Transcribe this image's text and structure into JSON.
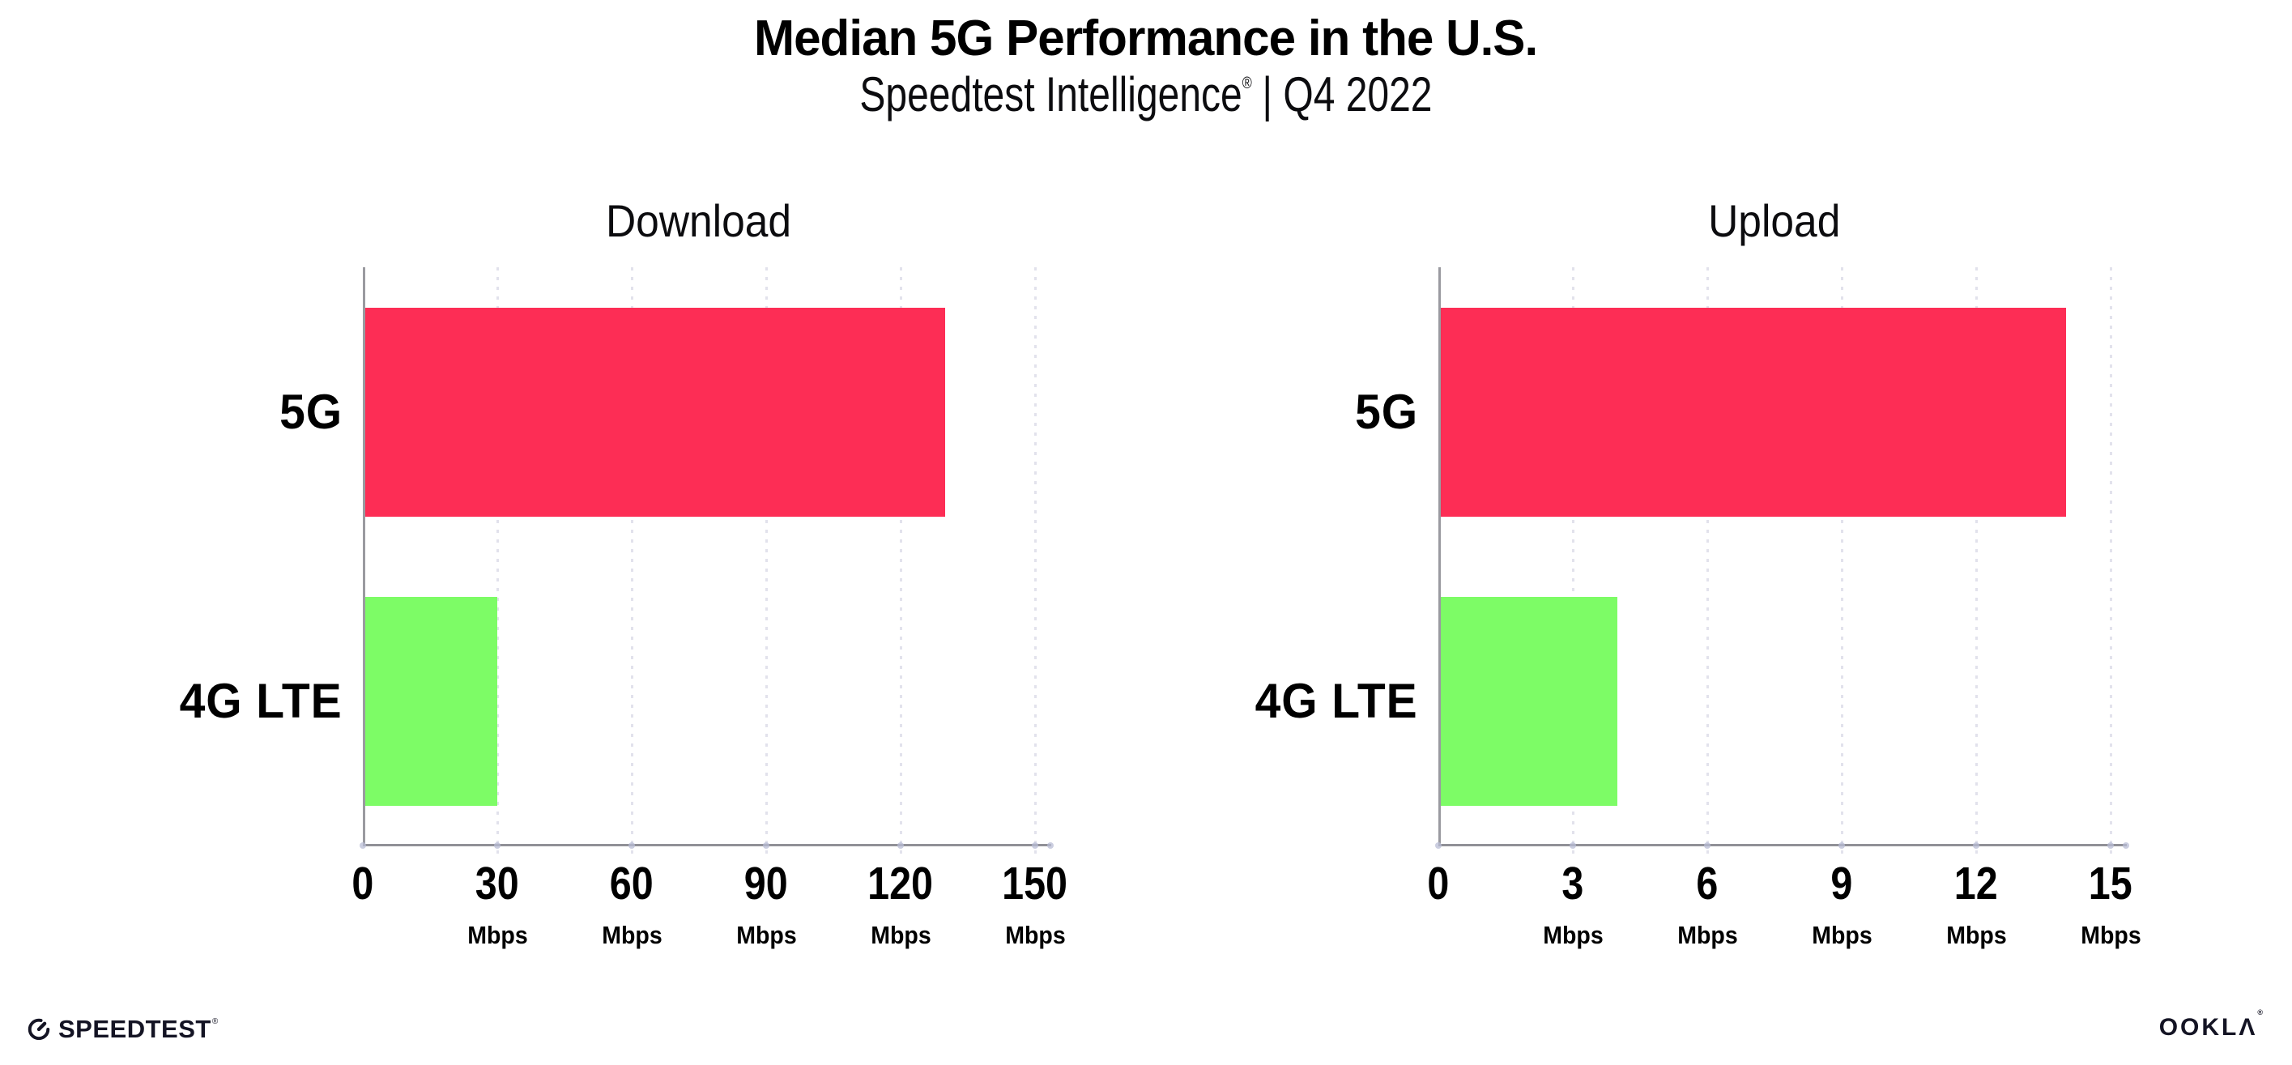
{
  "header": {
    "title": "Median 5G Performance in the U.S.",
    "subtitle_brand": "Speedtest Intelligence",
    "subtitle_reg": "®",
    "subtitle_rest": "| Q4 2022"
  },
  "chart_data": [
    {
      "type": "bar",
      "orientation": "horizontal",
      "title": "Download",
      "categories": [
        "5G",
        "4G LTE"
      ],
      "values": [
        130,
        30
      ],
      "unit": "Mbps",
      "xlim": [
        0,
        150
      ],
      "xticks": [
        "0",
        "30",
        "60",
        "90",
        "120",
        "150"
      ],
      "bar_colors": [
        "#fd2d55",
        "#7dfc66"
      ],
      "grid": "dotted-vertical",
      "legend": "none"
    },
    {
      "type": "bar",
      "orientation": "horizontal",
      "title": "Upload",
      "categories": [
        "5G",
        "4G LTE"
      ],
      "values": [
        14,
        4
      ],
      "unit": "Mbps",
      "xlim": [
        0,
        15
      ],
      "xticks": [
        "0",
        "3",
        "6",
        "9",
        "12",
        "15"
      ],
      "bar_colors": [
        "#fd2d55",
        "#7dfc66"
      ],
      "grid": "dotted-vertical",
      "legend": "none"
    }
  ],
  "colors": {
    "bar_5g": "#fd2d55",
    "bar_4g_lte": "#7dfc66",
    "axis": "#919197",
    "gridline": "#e2e2ec",
    "text": "#000000"
  },
  "footer": {
    "speedtest_label": "SPEEDTEST",
    "speedtest_reg": "®",
    "ookla_label": "OOKLA",
    "ookla_reg": "®"
  }
}
